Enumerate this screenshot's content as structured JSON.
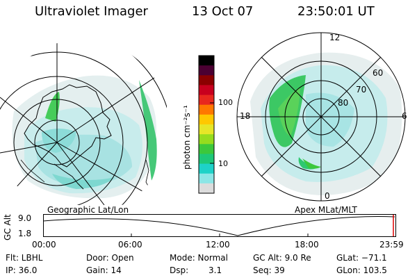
{
  "header": {
    "instrument": "Ultraviolet Imager",
    "date": "13 Oct 07",
    "time": "23:50:01 UT"
  },
  "left_map": {
    "caption": "Geographic Lat/Lon"
  },
  "right_map": {
    "caption": "Apex MLat/MLT",
    "mlt_labels": [
      "12",
      "18",
      "6",
      "0"
    ],
    "mlat_labels": [
      "60",
      "70",
      "80"
    ]
  },
  "colorbar": {
    "label": "photon cm⁻²s⁻¹",
    "ticks": [
      "100",
      "10"
    ],
    "colors": [
      "#000000",
      "#4b0032",
      "#8b0000",
      "#c8001e",
      "#e8281e",
      "#ff7800",
      "#ffc800",
      "#e6e628",
      "#96dc1e",
      "#3cc83c",
      "#1ec878",
      "#1ed2c8",
      "#8ce6e6",
      "#dcdcdc"
    ]
  },
  "altitude_plot": {
    "axis_label": "GC Alt",
    "y_ticks": [
      "9.0",
      "1.8"
    ],
    "x_ticks": [
      "00:00",
      "06:00",
      "12:00",
      "18:00",
      "23:59"
    ]
  },
  "info": {
    "flt": "Flt: LBHL",
    "door": "Door: Open",
    "mode": "Mode: Normal",
    "gc_alt": "GC Alt: 9.0 Re",
    "glat": "GLat: −71.1",
    "ip": "IP: 36.0",
    "gain": "Gain: 14",
    "dsp_label": "Dsp:",
    "dsp_value": "3.1",
    "seq": "Seq: 39",
    "glon": "GLon: 103.5"
  }
}
